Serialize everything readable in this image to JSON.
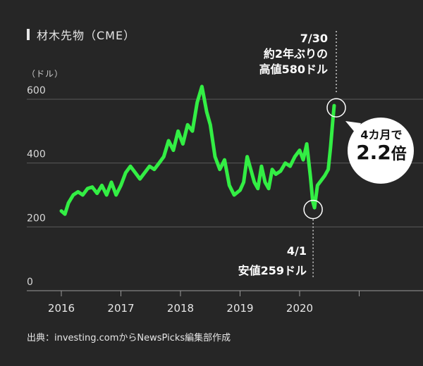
{
  "title": "材木先物（CME）",
  "unit_label": "（ドル）",
  "source": "出典：investing.comからNewsPicks編集部作成",
  "annotations": {
    "high": {
      "date": "7/30",
      "line1": "約2年ぶりの",
      "line2": "高値580ドル"
    },
    "low": {
      "date": "4/1",
      "line2": "安値259ドル"
    },
    "bubble": {
      "line1": "4カ月で",
      "big": "2.2",
      "suffix": "倍"
    }
  },
  "colors": {
    "background": "#262626",
    "line": "#33ee44",
    "grid": "#5a5a5a",
    "text": "#e6e6e6",
    "bubble": "#ffffff"
  },
  "chart_data": {
    "type": "line",
    "title": "材木先物（CME）",
    "ylabel": "（ドル）",
    "xlim": [
      2016.0,
      2021.4
    ],
    "ylim": [
      0,
      600
    ],
    "yticks": [
      0,
      200,
      400,
      600
    ],
    "xticks": [
      2016,
      2017,
      2018,
      2019,
      2020
    ],
    "series": [
      {
        "x": [
          2016.0,
          2016.06,
          2016.12,
          2016.2,
          2016.28,
          2016.36,
          2016.44,
          2016.52,
          2016.6,
          2016.68,
          2016.76,
          2016.84,
          2016.92,
          2017.0,
          2017.08,
          2017.16,
          2017.24,
          2017.32,
          2017.4,
          2017.48,
          2017.56,
          2017.64,
          2017.72,
          2017.8,
          2017.88,
          2017.96,
          2018.04,
          2018.12,
          2018.2,
          2018.28,
          2018.36,
          2018.4,
          2018.44,
          2018.5,
          2018.58,
          2018.66,
          2018.74,
          2018.82,
          2018.9,
          2019.0,
          2019.06,
          2019.12,
          2019.18,
          2019.24,
          2019.3,
          2019.36,
          2019.42,
          2019.48,
          2019.54,
          2019.6,
          2019.68,
          2019.76,
          2019.84,
          2019.92,
          2020.0,
          2020.06,
          2020.12,
          2020.18,
          2020.22,
          2020.25,
          2020.3,
          2020.36,
          2020.42,
          2020.48,
          2020.52,
          2020.56,
          2020.58
        ],
        "y": [
          250,
          240,
          275,
          300,
          310,
          300,
          320,
          325,
          305,
          330,
          300,
          340,
          300,
          330,
          370,
          390,
          370,
          350,
          370,
          390,
          380,
          400,
          420,
          470,
          440,
          500,
          460,
          520,
          500,
          590,
          640,
          600,
          560,
          520,
          420,
          380,
          410,
          330,
          300,
          315,
          340,
          420,
          380,
          340,
          320,
          390,
          340,
          320,
          380,
          365,
          375,
          400,
          390,
          420,
          440,
          410,
          460,
          360,
          280,
          260,
          330,
          345,
          360,
          380,
          450,
          540,
          580
        ]
      }
    ],
    "annotations": [
      {
        "x": 2020.58,
        "y": 580,
        "text": "約2年ぶりの高値580ドル",
        "date": "7/30"
      },
      {
        "x": 2020.25,
        "y": 259,
        "text": "安値259ドル",
        "date": "4/1"
      }
    ]
  }
}
